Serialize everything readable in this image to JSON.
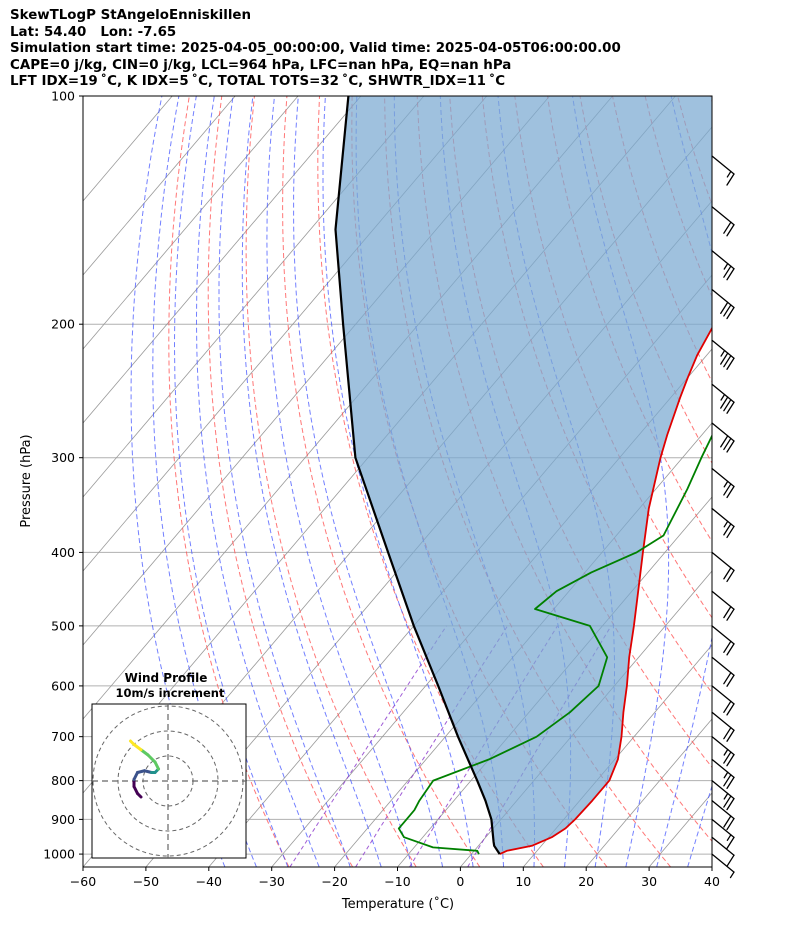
{
  "header": {
    "line1": "SkewTLogP StAngeloEnniskillen",
    "line2": "Lat: 54.40   Lon: -7.65",
    "line3": "Simulation start time: 2025-04-05_00:00:00, Valid time: 2025-04-05T06:00:00.00",
    "line4": "CAPE=0 j/kg, CIN=0 j/kg, LCL=964 hPa, LFC=nan hPa, EQ=nan hPa",
    "line5": "LFT IDX=19 ˚C, K IDX=5 ˚C, TOTAL TOTS=32 ˚C, SHWTR_IDX=11 ˚C"
  },
  "chart_data": {
    "type": "line",
    "subtype": "skew-t log-p",
    "xlabel": "Temperature (˚C)",
    "ylabel": "Pressure (hPa)",
    "xlim": [
      -60,
      40
    ],
    "ylim": [
      1040,
      100
    ],
    "x_ticks": [
      -60,
      -50,
      -40,
      -30,
      -20,
      -10,
      0,
      10,
      20,
      30,
      40
    ],
    "x_tick_labels": [
      "−60",
      "−50",
      "−40",
      "−30",
      "−20",
      "−10",
      "0",
      "10",
      "20",
      "30",
      "40"
    ],
    "y_ticks": [
      1000,
      900,
      800,
      700,
      600,
      500,
      400,
      300,
      200,
      100
    ],
    "y_scale": "log",
    "grid": true,
    "series": [
      {
        "key": "temperature",
        "color": "#e00000",
        "points": [
          [
            1000,
            4.5
          ],
          [
            990,
            5.2
          ],
          [
            975,
            8.5
          ],
          [
            950,
            10.5
          ],
          [
            925,
            11.5
          ],
          [
            900,
            11.8
          ],
          [
            850,
            12
          ],
          [
            800,
            12
          ],
          [
            750,
            10.5
          ],
          [
            700,
            8
          ],
          [
            650,
            5
          ],
          [
            600,
            2
          ],
          [
            550,
            -1.5
          ],
          [
            500,
            -5
          ],
          [
            450,
            -9
          ],
          [
            400,
            -13.5
          ],
          [
            350,
            -18.5
          ],
          [
            300,
            -23.5
          ],
          [
            280,
            -25.5
          ],
          [
            250,
            -28.5
          ],
          [
            235,
            -30
          ],
          [
            220,
            -31.5
          ],
          [
            200,
            -33
          ],
          [
            180,
            -34
          ],
          [
            160,
            -35.5
          ],
          [
            150,
            -38
          ],
          [
            140,
            -41
          ],
          [
            130,
            -44
          ],
          [
            120,
            -47
          ],
          [
            110,
            -50
          ],
          [
            100,
            -53
          ]
        ]
      },
      {
        "key": "dewpoint",
        "color": "#008000",
        "points": [
          [
            1000,
            1.2
          ],
          [
            990,
            0.5
          ],
          [
            980,
            -7
          ],
          [
            950,
            -13
          ],
          [
            925,
            -15
          ],
          [
            900,
            -15
          ],
          [
            875,
            -15
          ],
          [
            850,
            -15.5
          ],
          [
            800,
            -16
          ],
          [
            750,
            -10
          ],
          [
            700,
            -5.5
          ],
          [
            650,
            -3.5
          ],
          [
            600,
            -2.5
          ],
          [
            550,
            -5
          ],
          [
            500,
            -12
          ],
          [
            475,
            -23
          ],
          [
            450,
            -22
          ],
          [
            425,
            -19
          ],
          [
            400,
            -14.5
          ],
          [
            380,
            -12.5
          ],
          [
            330,
            -15
          ],
          [
            300,
            -17
          ],
          [
            270,
            -19
          ],
          [
            240,
            -22
          ],
          [
            220,
            -26
          ],
          [
            200,
            -30.5
          ],
          [
            180,
            -36
          ],
          [
            160,
            -39
          ],
          [
            150,
            -42
          ],
          [
            140,
            -44
          ],
          [
            130,
            -47
          ],
          [
            120,
            -50
          ],
          [
            110,
            -53
          ],
          [
            100,
            -56
          ]
        ]
      },
      {
        "key": "parcel",
        "color": "#000000",
        "points": [
          [
            1000,
            4.5
          ],
          [
            975,
            2.5
          ],
          [
            964,
            1.9
          ],
          [
            900,
            -1.5
          ],
          [
            850,
            -5
          ],
          [
            800,
            -9
          ],
          [
            700,
            -18
          ],
          [
            600,
            -28
          ],
          [
            500,
            -40
          ],
          [
            400,
            -54
          ],
          [
            300,
            -72
          ],
          [
            200,
            -92
          ],
          [
            150,
            -106
          ],
          [
            100,
            -122
          ]
        ]
      }
    ],
    "wind_barbs": {
      "color": "#000000",
      "levels": [
        {
          "p": 120,
          "speed": 15
        },
        {
          "p": 140,
          "speed": 20
        },
        {
          "p": 160,
          "speed": 25
        },
        {
          "p": 180,
          "speed": 30
        },
        {
          "p": 210,
          "speed": 35
        },
        {
          "p": 240,
          "speed": 35
        },
        {
          "p": 270,
          "speed": 30
        },
        {
          "p": 310,
          "speed": 25
        },
        {
          "p": 350,
          "speed": 25
        },
        {
          "p": 400,
          "speed": 20
        },
        {
          "p": 450,
          "speed": 20
        },
        {
          "p": 500,
          "speed": 20
        },
        {
          "p": 550,
          "speed": 20
        },
        {
          "p": 600,
          "speed": 20
        },
        {
          "p": 650,
          "speed": 20
        },
        {
          "p": 700,
          "speed": 25
        },
        {
          "p": 750,
          "speed": 25
        },
        {
          "p": 800,
          "speed": 25
        },
        {
          "p": 850,
          "speed": 20
        },
        {
          "p": 900,
          "speed": 15
        },
        {
          "p": 950,
          "speed": 10
        },
        {
          "p": 1000,
          "speed": 5
        }
      ]
    },
    "hodograph": {
      "title": "Wind Profile",
      "subtitle": "10m/s increment",
      "rings": 3,
      "colors": [
        "#440154",
        "#3b528b",
        "#21918c",
        "#5ec962",
        "#fde725"
      ],
      "path": [
        [
          -2,
          -6
        ],
        [
          -3,
          -5
        ],
        [
          -4,
          -3
        ],
        [
          -4,
          -1
        ],
        [
          -3,
          1
        ],
        [
          -1,
          1.5
        ],
        [
          1,
          1
        ],
        [
          2,
          1
        ],
        [
          3,
          2
        ],
        [
          2,
          4
        ],
        [
          0,
          6
        ],
        [
          -2,
          7.5
        ],
        [
          -4,
          9
        ],
        [
          -5,
          10
        ]
      ]
    },
    "colors": {
      "dry_adiabat": "#ff5555",
      "moist_adiabat": "#4455ff",
      "mixing_ratio": "#8833cc",
      "isotherm": "#999999",
      "cape_fill": "#7aa9d1"
    }
  }
}
